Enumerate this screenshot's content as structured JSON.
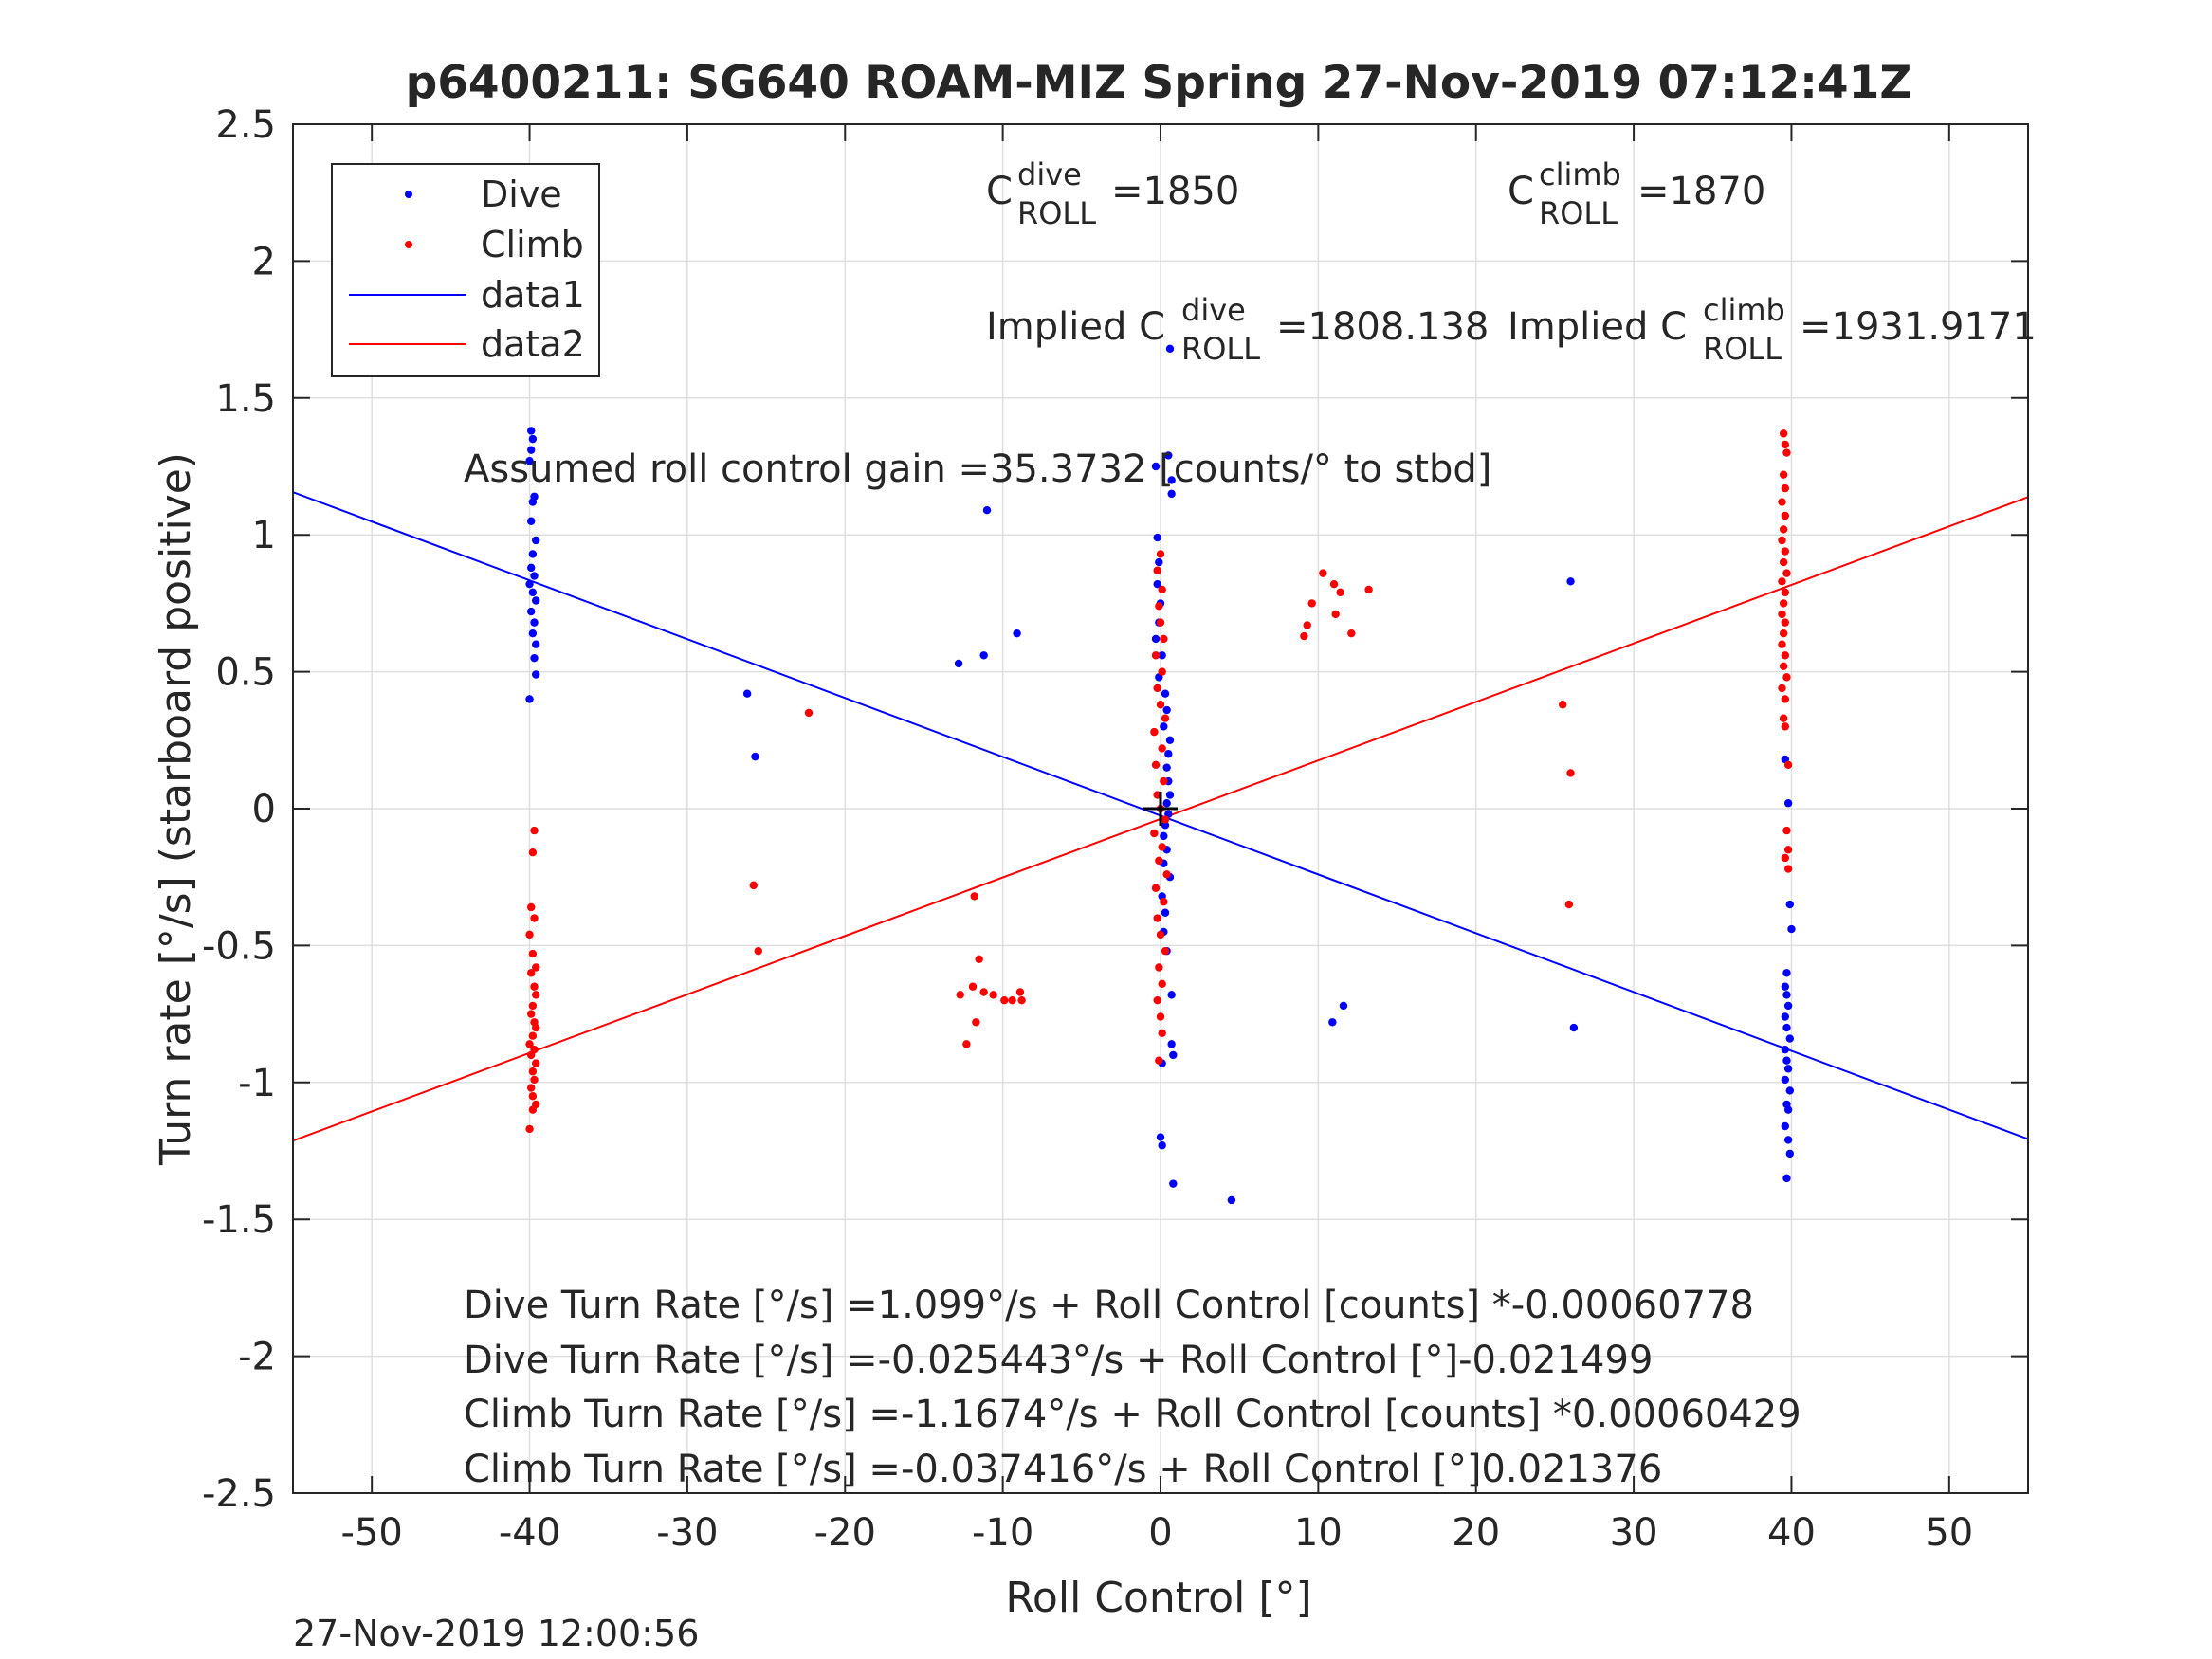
{
  "chart_data": {
    "type": "scatter",
    "title": "p6400211: SG640 ROAM-MIZ Spring 27-Nov-2019 07:12:41Z",
    "xlabel": "Roll Control [°]",
    "ylabel": "Turn rate [°/s] (starboard positive)",
    "xlim": [
      -55,
      55
    ],
    "ylim": [
      -2.5,
      2.5
    ],
    "xticks": [
      -50,
      -40,
      -30,
      -20,
      -10,
      0,
      10,
      20,
      30,
      40,
      50
    ],
    "xtick_labels": [
      "-50",
      "-40",
      "-30",
      "-20",
      "-10",
      "0",
      "10",
      "20",
      "30",
      "40",
      "50"
    ],
    "yticks": [
      -2.5,
      -2,
      -1.5,
      -1,
      -0.5,
      0,
      0.5,
      1,
      1.5,
      2,
      2.5
    ],
    "ytick_labels": [
      "-2.5",
      "-2",
      "-1.5",
      "-1",
      "-0.5",
      "0",
      "0.5",
      "1",
      "1.5",
      "2",
      "2.5"
    ],
    "grid": true,
    "legend_position": "top-left",
    "legend": [
      "Dive",
      "Climb",
      "data1",
      "data2"
    ],
    "series": [
      {
        "name": "Dive",
        "kind": "points",
        "color": "#0000ff",
        "points": [
          [
            -39.9,
            1.38
          ],
          [
            -39.8,
            1.35
          ],
          [
            -39.9,
            1.31
          ],
          [
            -40.0,
            1.27
          ],
          [
            -39.7,
            1.14
          ],
          [
            -39.8,
            1.12
          ],
          [
            -39.9,
            1.05
          ],
          [
            -39.6,
            0.98
          ],
          [
            -39.8,
            0.93
          ],
          [
            -39.9,
            0.88
          ],
          [
            -39.7,
            0.85
          ],
          [
            -40.0,
            0.82
          ],
          [
            -39.8,
            0.79
          ],
          [
            -39.6,
            0.76
          ],
          [
            -39.9,
            0.72
          ],
          [
            -39.7,
            0.68
          ],
          [
            -39.8,
            0.64
          ],
          [
            -39.6,
            0.6
          ],
          [
            -39.7,
            0.55
          ],
          [
            -39.6,
            0.49
          ],
          [
            -40.0,
            0.4
          ],
          [
            -26.2,
            0.42
          ],
          [
            -25.7,
            0.19
          ],
          [
            -12.8,
            0.53
          ],
          [
            -11.0,
            1.09
          ],
          [
            -11.2,
            0.56
          ],
          [
            -9.1,
            0.64
          ],
          [
            26.0,
            0.83
          ],
          [
            26.2,
            -0.8
          ],
          [
            10.9,
            -0.78
          ],
          [
            11.6,
            -0.72
          ],
          [
            4.5,
            -1.43
          ],
          [
            0.6,
            1.68
          ],
          [
            0.5,
            1.29
          ],
          [
            0.7,
            1.2
          ],
          [
            0.7,
            1.15
          ],
          [
            -0.3,
            1.25
          ],
          [
            -0.2,
            0.99
          ],
          [
            -0.1,
            0.9
          ],
          [
            -0.2,
            0.82
          ],
          [
            0.0,
            0.75
          ],
          [
            -0.1,
            0.68
          ],
          [
            -0.3,
            0.62
          ],
          [
            0.1,
            0.56
          ],
          [
            -0.1,
            0.48
          ],
          [
            0.3,
            0.42
          ],
          [
            0.4,
            0.36
          ],
          [
            0.2,
            0.3
          ],
          [
            0.6,
            0.25
          ],
          [
            0.5,
            0.2
          ],
          [
            0.4,
            0.15
          ],
          [
            0.5,
            0.1
          ],
          [
            0.6,
            0.05
          ],
          [
            0.4,
            0.02
          ],
          [
            0.5,
            -0.02
          ],
          [
            0.3,
            -0.06
          ],
          [
            0.2,
            -0.1
          ],
          [
            0.4,
            -0.15
          ],
          [
            0.2,
            -0.2
          ],
          [
            0.6,
            -0.25
          ],
          [
            0.1,
            -0.32
          ],
          [
            0.3,
            -0.38
          ],
          [
            0.2,
            -0.45
          ],
          [
            0.4,
            -0.52
          ],
          [
            0.7,
            -0.68
          ],
          [
            0.7,
            -0.86
          ],
          [
            0.8,
            -0.9
          ],
          [
            0.1,
            -0.93
          ],
          [
            0.0,
            -1.2
          ],
          [
            0.1,
            -1.23
          ],
          [
            0.8,
            -1.37
          ],
          [
            39.6,
            0.18
          ],
          [
            39.8,
            0.02
          ],
          [
            39.9,
            -0.35
          ],
          [
            40.0,
            -0.44
          ],
          [
            39.7,
            -0.6
          ],
          [
            39.6,
            -0.65
          ],
          [
            39.7,
            -0.68
          ],
          [
            39.8,
            -0.72
          ],
          [
            39.6,
            -0.76
          ],
          [
            39.7,
            -0.8
          ],
          [
            39.9,
            -0.84
          ],
          [
            39.6,
            -0.88
          ],
          [
            39.7,
            -0.92
          ],
          [
            39.8,
            -0.95
          ],
          [
            39.6,
            -0.99
          ],
          [
            39.9,
            -1.03
          ],
          [
            39.7,
            -1.08
          ],
          [
            39.8,
            -1.1
          ],
          [
            39.6,
            -1.16
          ],
          [
            39.8,
            -1.21
          ],
          [
            39.9,
            -1.26
          ],
          [
            39.7,
            -1.35
          ]
        ]
      },
      {
        "name": "Climb",
        "kind": "points",
        "color": "#ff0000",
        "points": [
          [
            -39.7,
            -0.08
          ],
          [
            -39.8,
            -0.16
          ],
          [
            -39.9,
            -0.36
          ],
          [
            -39.7,
            -0.4
          ],
          [
            -40.0,
            -0.46
          ],
          [
            -39.8,
            -0.53
          ],
          [
            -39.6,
            -0.58
          ],
          [
            -39.9,
            -0.6
          ],
          [
            -39.7,
            -0.65
          ],
          [
            -39.6,
            -0.68
          ],
          [
            -39.8,
            -0.72
          ],
          [
            -39.9,
            -0.75
          ],
          [
            -39.7,
            -0.78
          ],
          [
            -39.6,
            -0.8
          ],
          [
            -39.8,
            -0.83
          ],
          [
            -40.0,
            -0.86
          ],
          [
            -39.7,
            -0.88
          ],
          [
            -39.9,
            -0.9
          ],
          [
            -39.6,
            -0.93
          ],
          [
            -39.8,
            -0.96
          ],
          [
            -39.7,
            -0.99
          ],
          [
            -39.9,
            -1.02
          ],
          [
            -39.8,
            -1.05
          ],
          [
            -39.6,
            -1.08
          ],
          [
            -39.8,
            -1.1
          ],
          [
            -40.0,
            -1.17
          ],
          [
            -22.3,
            0.35
          ],
          [
            -25.8,
            -0.28
          ],
          [
            -25.5,
            -0.52
          ],
          [
            -11.8,
            -0.32
          ],
          [
            -12.7,
            -0.68
          ],
          [
            -11.9,
            -0.65
          ],
          [
            -11.5,
            -0.55
          ],
          [
            -11.2,
            -0.67
          ],
          [
            -10.6,
            -0.68
          ],
          [
            -9.9,
            -0.7
          ],
          [
            -9.4,
            -0.7
          ],
          [
            -8.9,
            -0.67
          ],
          [
            -8.8,
            -0.7
          ],
          [
            -11.7,
            -0.78
          ],
          [
            -12.3,
            -0.86
          ],
          [
            9.3,
            0.67
          ],
          [
            9.6,
            0.75
          ],
          [
            10.3,
            0.86
          ],
          [
            11.0,
            0.82
          ],
          [
            11.4,
            0.79
          ],
          [
            11.1,
            0.71
          ],
          [
            12.1,
            0.64
          ],
          [
            9.1,
            0.63
          ],
          [
            13.2,
            0.8
          ],
          [
            25.5,
            0.38
          ],
          [
            26.0,
            0.13
          ],
          [
            25.9,
            -0.35
          ],
          [
            0.0,
            0.93
          ],
          [
            -0.2,
            0.87
          ],
          [
            0.1,
            0.8
          ],
          [
            -0.1,
            0.74
          ],
          [
            0.0,
            0.68
          ],
          [
            0.2,
            0.62
          ],
          [
            -0.3,
            0.56
          ],
          [
            0.1,
            0.5
          ],
          [
            -0.2,
            0.44
          ],
          [
            0.0,
            0.38
          ],
          [
            0.3,
            0.33
          ],
          [
            -0.4,
            0.28
          ],
          [
            0.1,
            0.22
          ],
          [
            -0.3,
            0.16
          ],
          [
            0.2,
            0.1
          ],
          [
            -0.2,
            0.05
          ],
          [
            0.0,
            0.0
          ],
          [
            0.3,
            -0.04
          ],
          [
            -0.4,
            -0.09
          ],
          [
            0.1,
            -0.14
          ],
          [
            -0.1,
            -0.19
          ],
          [
            0.4,
            -0.24
          ],
          [
            -0.3,
            -0.29
          ],
          [
            0.2,
            -0.34
          ],
          [
            -0.2,
            -0.4
          ],
          [
            0.0,
            -0.46
          ],
          [
            0.3,
            -0.52
          ],
          [
            -0.1,
            -0.58
          ],
          [
            0.1,
            -0.64
          ],
          [
            -0.2,
            -0.7
          ],
          [
            0.0,
            -0.76
          ],
          [
            0.1,
            -0.82
          ],
          [
            -0.1,
            -0.92
          ],
          [
            39.5,
            1.37
          ],
          [
            39.6,
            1.33
          ],
          [
            39.7,
            1.3
          ],
          [
            39.5,
            1.22
          ],
          [
            39.6,
            1.17
          ],
          [
            39.4,
            1.12
          ],
          [
            39.6,
            1.07
          ],
          [
            39.5,
            1.02
          ],
          [
            39.4,
            0.98
          ],
          [
            39.6,
            0.94
          ],
          [
            39.5,
            0.9
          ],
          [
            39.7,
            0.86
          ],
          [
            39.4,
            0.83
          ],
          [
            39.6,
            0.79
          ],
          [
            39.5,
            0.75
          ],
          [
            39.4,
            0.71
          ],
          [
            39.6,
            0.68
          ],
          [
            39.5,
            0.64
          ],
          [
            39.4,
            0.6
          ],
          [
            39.6,
            0.56
          ],
          [
            39.5,
            0.52
          ],
          [
            39.7,
            0.48
          ],
          [
            39.4,
            0.44
          ],
          [
            39.6,
            0.4
          ],
          [
            39.5,
            0.33
          ],
          [
            39.6,
            0.3
          ],
          [
            39.8,
            0.16
          ],
          [
            39.7,
            -0.08
          ],
          [
            39.8,
            -0.15
          ],
          [
            39.6,
            -0.18
          ],
          [
            39.8,
            -0.22
          ]
        ]
      },
      {
        "name": "data1",
        "kind": "line",
        "color": "#0000ff",
        "points": [
          [
            -55,
            1.156
          ],
          [
            55,
            -1.207
          ]
        ]
      },
      {
        "name": "data2",
        "kind": "line",
        "color": "#ff0000",
        "points": [
          [
            -55,
            -1.213
          ],
          [
            55,
            1.138
          ]
        ]
      },
      {
        "name": "origin",
        "kind": "plus",
        "color": "#000000",
        "points": [
          [
            0,
            0
          ]
        ]
      }
    ],
    "annotations": {
      "c_dive_base": "C",
      "c_dive_sup": "dive",
      "c_dive_sub": "ROLL",
      "c_dive_value": "=1850",
      "c_climb_base": "C",
      "c_climb_sup": "climb",
      "c_climb_sub": "ROLL",
      "c_climb_value": "=1870",
      "implied_dive_prefix": "Implied C",
      "implied_dive_sup": "dive",
      "implied_dive_sub": "ROLL",
      "implied_dive_value": "=1808.138",
      "implied_climb_prefix": "Implied C",
      "implied_climb_sup": "climb",
      "implied_climb_sub": "ROLL",
      "implied_climb_value": "=1931.9171",
      "gain": "Assumed roll control gain =35.3732 [counts/° to stbd]",
      "fit_lines": [
        "Dive Turn Rate [°/s] =1.099°/s + Roll Control [counts] *-0.00060778",
        "Dive Turn Rate [°/s] =-0.025443°/s + Roll Control [°]-0.021499",
        "Climb Turn Rate [°/s] =-1.1674°/s + Roll Control [counts] *0.00060429",
        "Climb Turn Rate [°/s] =-0.037416°/s + Roll Control [°]0.021376"
      ]
    },
    "timestamp": "27-Nov-2019 12:00:56"
  }
}
